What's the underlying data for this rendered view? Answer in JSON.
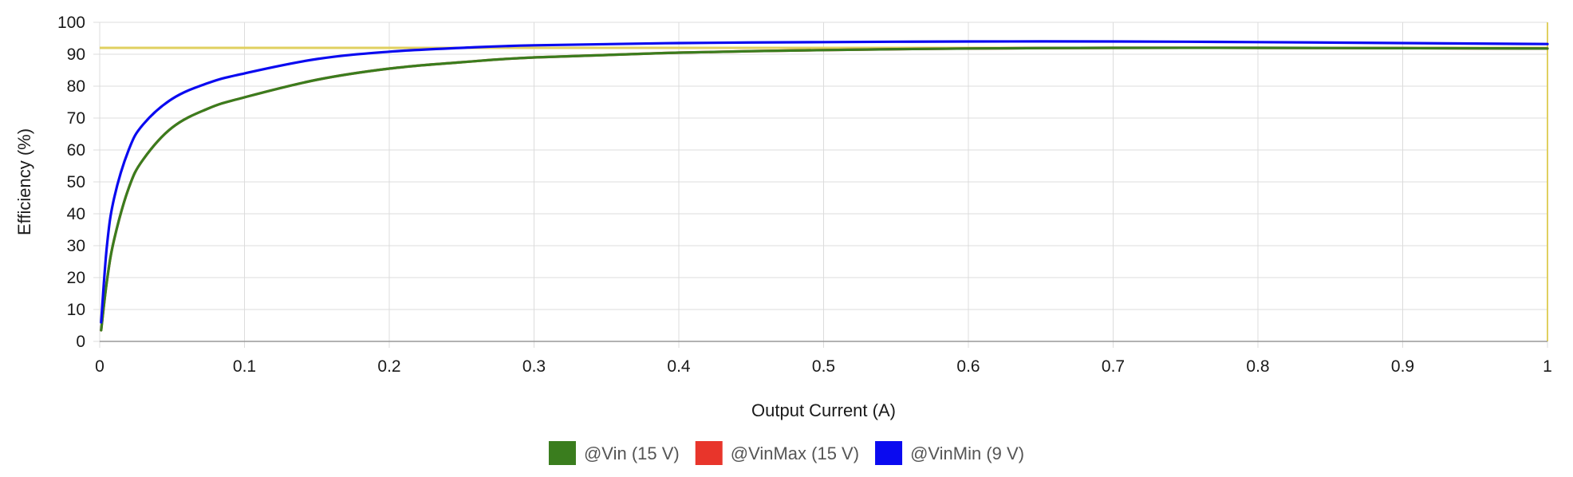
{
  "chart_data": {
    "type": "line",
    "title": "",
    "xlabel": "Output Current (A)",
    "ylabel": "Efficiency (%)",
    "xlim": [
      0,
      1
    ],
    "ylim": [
      0,
      100
    ],
    "x_ticks": [
      "0",
      "0.1",
      "0.2",
      "0.3",
      "0.4",
      "0.5",
      "0.6",
      "0.7",
      "0.8",
      "0.9",
      "1"
    ],
    "y_ticks": [
      "0",
      "10",
      "20",
      "30",
      "40",
      "50",
      "60",
      "70",
      "80",
      "90",
      "100"
    ],
    "grid": true,
    "legend_position": "bottom-center",
    "reference_lines": {
      "horizontal_y": 92,
      "vertical_x": 1,
      "color": "#e0d060"
    },
    "series": [
      {
        "name": "@Vin (15 V)",
        "color": "#3a7d1e",
        "x": [
          0.001,
          0.005,
          0.01,
          0.02,
          0.03,
          0.05,
          0.075,
          0.1,
          0.15,
          0.2,
          0.25,
          0.3,
          0.4,
          0.5,
          0.6,
          0.7,
          0.8,
          0.9,
          1.0
        ],
        "y": [
          3.5,
          19,
          32,
          48,
          57,
          67,
          73,
          76.5,
          82,
          85.5,
          87.5,
          89,
          90.5,
          91.3,
          91.8,
          92,
          92,
          91.9,
          91.8
        ]
      },
      {
        "name": "@VinMax (15 V)",
        "color": "#e8352b",
        "x": [
          0.001,
          0.005,
          0.01,
          0.02,
          0.03,
          0.05,
          0.075,
          0.1,
          0.15,
          0.2,
          0.25,
          0.3,
          0.4,
          0.5,
          0.6,
          0.7,
          0.8,
          0.9,
          1.0
        ],
        "y": [
          3.5,
          19,
          32,
          48,
          57,
          67,
          73,
          76.5,
          82,
          85.5,
          87.5,
          89,
          90.5,
          91.3,
          91.8,
          92,
          92,
          91.9,
          91.8
        ]
      },
      {
        "name": "@VinMin (9 V)",
        "color": "#0a0af0",
        "x": [
          0.001,
          0.005,
          0.01,
          0.02,
          0.03,
          0.05,
          0.075,
          0.1,
          0.15,
          0.2,
          0.25,
          0.3,
          0.4,
          0.5,
          0.6,
          0.7,
          0.8,
          0.9,
          1.0
        ],
        "y": [
          6,
          30,
          45,
          60,
          68,
          76,
          81,
          84,
          88.5,
          90.8,
          92,
          92.8,
          93.5,
          93.8,
          94,
          94,
          93.8,
          93.5,
          93.2
        ]
      }
    ]
  }
}
